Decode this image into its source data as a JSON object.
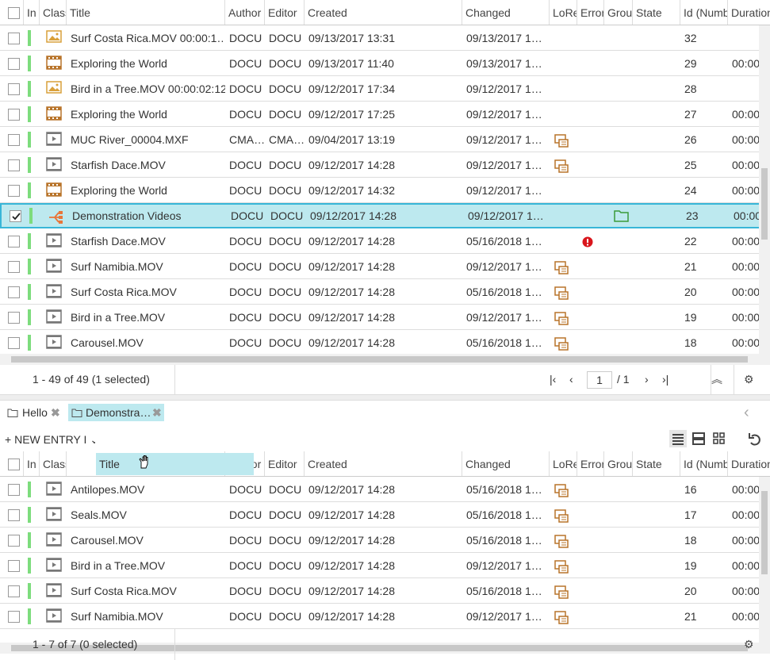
{
  "top_grid": {
    "columns": [
      "In",
      "Class",
      "Title",
      "Author",
      "Editor",
      "Created",
      "Changed",
      "LoRe",
      "Error",
      "Grou",
      "State",
      "Id (Numb",
      "Duration"
    ],
    "rows": [
      {
        "icon": "image",
        "title": "Surf Costa Rica.MOV 00:00:1…",
        "author": "DOCU",
        "editor": "DOCU",
        "created": "09/13/2017 13:31",
        "changed": "09/13/2017 1…",
        "id": 32
      },
      {
        "icon": "film",
        "title": "Exploring the World",
        "author": "DOCU",
        "editor": "DOCU",
        "created": "09/13/2017 11:40",
        "changed": "09/13/2017 1…",
        "id": 29,
        "duration": "00:00"
      },
      {
        "icon": "image",
        "title": "Bird in a Tree.MOV 00:00:02:12",
        "author": "DOCU",
        "editor": "DOCU",
        "created": "09/12/2017 17:34",
        "changed": "09/12/2017 1…",
        "id": 28
      },
      {
        "icon": "film",
        "title": "Exploring the World",
        "author": "DOCU",
        "editor": "DOCU",
        "created": "09/12/2017 17:25",
        "changed": "09/12/2017 1…",
        "id": 27,
        "duration": "00:00"
      },
      {
        "icon": "video",
        "title": "MUC River_00004.MXF",
        "author": "CMA…",
        "editor": "CMA…",
        "created": "09/04/2017 13:19",
        "changed": "09/12/2017 1…",
        "lore": true,
        "id": 26,
        "duration": "00:00"
      },
      {
        "icon": "video",
        "title": "Starfish Dace.MOV",
        "author": "DOCU",
        "editor": "DOCU",
        "created": "09/12/2017 14:28",
        "changed": "09/12/2017 1…",
        "lore": true,
        "id": 25,
        "duration": "00:00"
      },
      {
        "icon": "film",
        "title": "Exploring the World",
        "author": "DOCU",
        "editor": "DOCU",
        "created": "09/12/2017 14:32",
        "changed": "09/12/2017 1…",
        "id": 24,
        "duration": "00:00"
      },
      {
        "icon": "collection",
        "selected": true,
        "title": "Demonstration Videos",
        "author": "DOCU",
        "editor": "DOCU",
        "created": "09/12/2017 14:28",
        "changed": "09/12/2017 1…",
        "group": true,
        "id": 23,
        "duration": "00:00"
      },
      {
        "icon": "video",
        "title": "Starfish Dace.MOV",
        "author": "DOCU",
        "editor": "DOCU",
        "created": "09/12/2017 14:28",
        "changed": "05/16/2018 1…",
        "error": true,
        "id": 22,
        "duration": "00:00"
      },
      {
        "icon": "video",
        "title": "Surf Namibia.MOV",
        "author": "DOCU",
        "editor": "DOCU",
        "created": "09/12/2017 14:28",
        "changed": "09/12/2017 1…",
        "lore": true,
        "id": 21,
        "duration": "00:00"
      },
      {
        "icon": "video",
        "title": "Surf Costa Rica.MOV",
        "author": "DOCU",
        "editor": "DOCU",
        "created": "09/12/2017 14:28",
        "changed": "05/16/2018 1…",
        "lore": true,
        "id": 20,
        "duration": "00:00"
      },
      {
        "icon": "video",
        "title": "Bird in a Tree.MOV",
        "author": "DOCU",
        "editor": "DOCU",
        "created": "09/12/2017 14:28",
        "changed": "09/12/2017 1…",
        "lore": true,
        "id": 19,
        "duration": "00:00"
      },
      {
        "icon": "video",
        "title": "Carousel.MOV",
        "author": "DOCU",
        "editor": "DOCU",
        "created": "09/12/2017 14:28",
        "changed": "05/16/2018 1…",
        "lore": true,
        "id": 18,
        "duration": "00:00"
      }
    ],
    "footer": {
      "status": "1 - 49 of 49 (1 selected)",
      "page": "1",
      "page_total": "/ 1"
    }
  },
  "tabs": [
    "Hello",
    "Demonstra…"
  ],
  "toolbar": {
    "new_entry": "NEW ENTRY I"
  },
  "bottom_grid": {
    "columns": [
      "In",
      "Class",
      "Title",
      "Author",
      "Editor",
      "Created",
      "Changed",
      "LoRe",
      "Error",
      "Grou",
      "State",
      "Id (Numb",
      "Duration"
    ],
    "rows": [
      {
        "icon": "video",
        "title": "Antilopes.MOV",
        "author": "DOCU",
        "editor": "DOCU",
        "created": "09/12/2017 14:28",
        "changed": "05/16/2018 1…",
        "lore": true,
        "id": 16,
        "duration": "00:00"
      },
      {
        "icon": "video",
        "title": "Seals.MOV",
        "author": "DOCU",
        "editor": "DOCU",
        "created": "09/12/2017 14:28",
        "changed": "05/16/2018 1…",
        "lore": true,
        "id": 17,
        "duration": "00:00"
      },
      {
        "icon": "video",
        "title": "Carousel.MOV",
        "author": "DOCU",
        "editor": "DOCU",
        "created": "09/12/2017 14:28",
        "changed": "05/16/2018 1…",
        "lore": true,
        "id": 18,
        "duration": "00:00"
      },
      {
        "icon": "video",
        "title": "Bird in a Tree.MOV",
        "author": "DOCU",
        "editor": "DOCU",
        "created": "09/12/2017 14:28",
        "changed": "09/12/2017 1…",
        "lore": true,
        "id": 19,
        "duration": "00:00"
      },
      {
        "icon": "video",
        "title": "Surf Costa Rica.MOV",
        "author": "DOCU",
        "editor": "DOCU",
        "created": "09/12/2017 14:28",
        "changed": "05/16/2018 1…",
        "lore": true,
        "id": 20,
        "duration": "00:00"
      },
      {
        "icon": "video",
        "title": "Surf Namibia.MOV",
        "author": "DOCU",
        "editor": "DOCU",
        "created": "09/12/2017 14:28",
        "changed": "09/12/2017 1…",
        "lore": true,
        "id": 21,
        "duration": "00:00"
      }
    ],
    "footer": {
      "status": "1 - 7 of 7 (0 selected)"
    }
  }
}
